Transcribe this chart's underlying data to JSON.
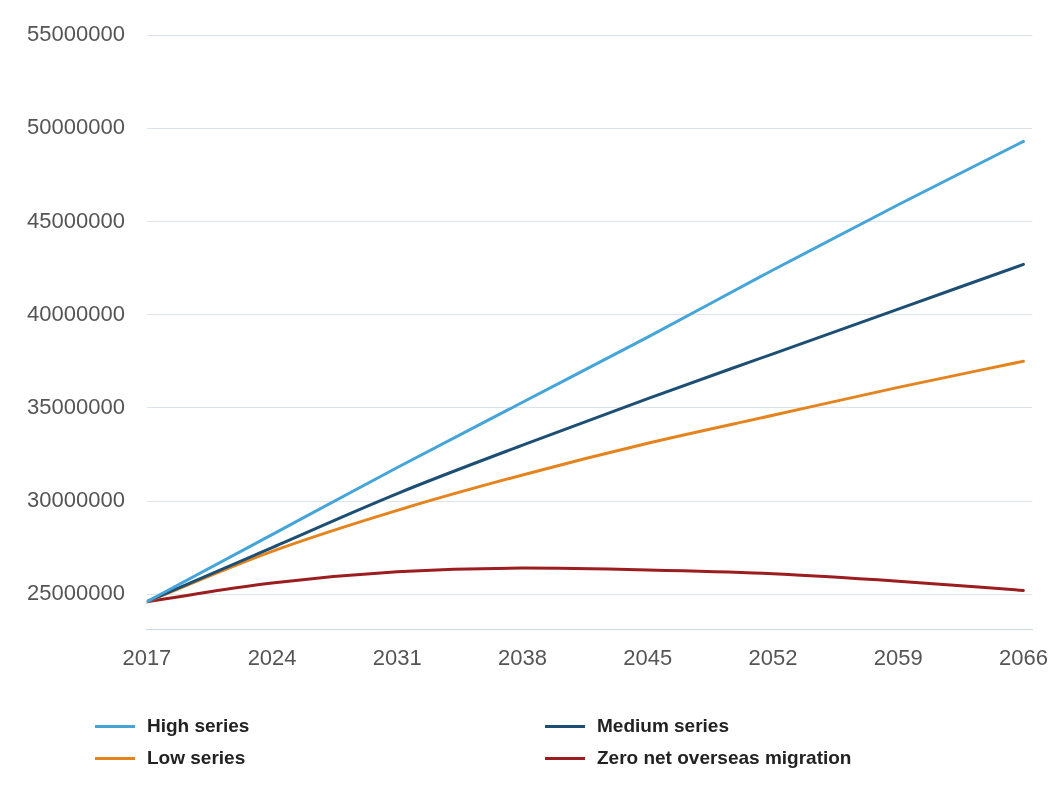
{
  "chart_data": {
    "type": "line",
    "x": [
      2017,
      2024,
      2031,
      2038,
      2045,
      2052,
      2059,
      2066
    ],
    "xlim": [
      2017,
      2066.5
    ],
    "xticks": [
      2017,
      2024,
      2031,
      2038,
      2045,
      2052,
      2059,
      2066
    ],
    "ylim": [
      23100000,
      55000000
    ],
    "yticks": [
      25000000,
      30000000,
      35000000,
      40000000,
      45000000,
      50000000,
      55000000
    ],
    "grid": "y",
    "legend": "bottom",
    "marker": "none",
    "line_style": "solid",
    "series": [
      {
        "name": "High series",
        "color": "#45a5d8",
        "values": [
          24600000,
          28200000,
          31800000,
          35300000,
          38800000,
          42400000,
          45900000,
          49300000
        ]
      },
      {
        "name": "Medium series",
        "color": "#1d4e74",
        "values": [
          24600000,
          27500000,
          30400000,
          33000000,
          35500000,
          37900000,
          40300000,
          42700000
        ]
      },
      {
        "name": "Low series",
        "color": "#e5841e",
        "values": [
          24600000,
          27300000,
          29500000,
          31400000,
          33100000,
          34600000,
          36100000,
          37500000
        ]
      },
      {
        "name": "Zero net overseas migration",
        "color": "#9b1d20",
        "values": [
          24600000,
          25600000,
          26200000,
          26400000,
          26300000,
          26100000,
          25700000,
          25200000
        ]
      }
    ]
  }
}
